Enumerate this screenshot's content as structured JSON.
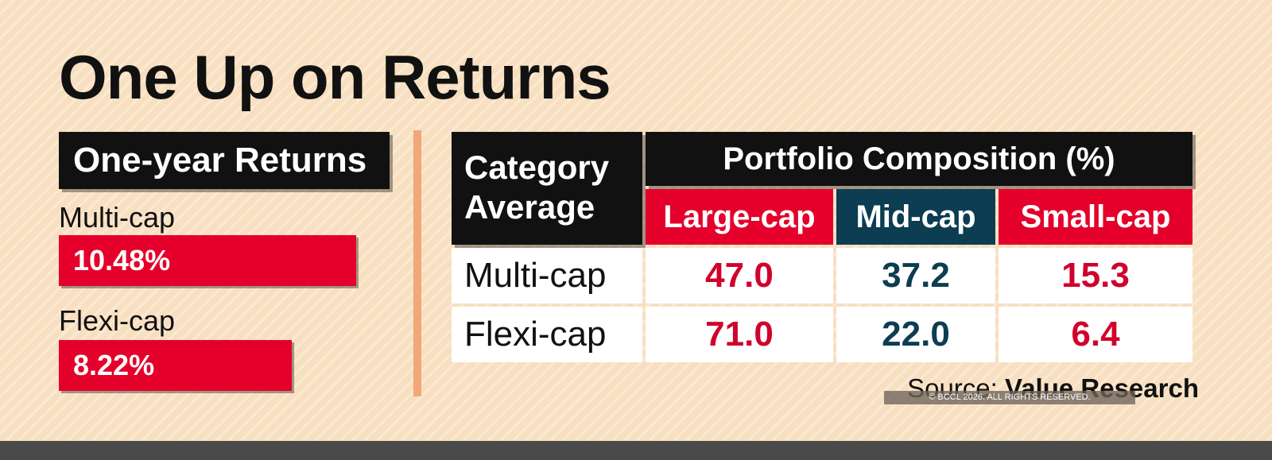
{
  "title": "One Up on Returns",
  "returns_panel": {
    "heading": "One-year Returns",
    "items": [
      {
        "label": "Multi-cap",
        "value_label": "10.48%",
        "value": 10.48
      },
      {
        "label": "Flexi-cap",
        "value_label": "8.22%",
        "value": 8.22
      }
    ]
  },
  "table": {
    "corner_label": [
      "Category",
      "Average"
    ],
    "group_header": "Portfolio Composition (%)",
    "columns": [
      "Large-cap",
      "Mid-cap",
      "Small-cap"
    ],
    "rows": [
      {
        "label": "Multi-cap",
        "cells": [
          "47.0",
          "37.2",
          "15.3"
        ]
      },
      {
        "label": "Flexi-cap",
        "cells": [
          "71.0",
          "22.0",
          "6.4"
        ]
      }
    ]
  },
  "source": {
    "prefix": "Source:",
    "name": "Value Research"
  },
  "copyright": "© BCCL 2026. ALL RIGHTS RESERVED.",
  "colors": {
    "accent_red": "#e4002b",
    "teal": "#0c3d52",
    "header_black": "#111111",
    "background": "#f8dfc0"
  },
  "chart_data": [
    {
      "type": "bar",
      "title": "One-year Returns",
      "categories": [
        "Multi-cap",
        "Flexi-cap"
      ],
      "values": [
        10.48,
        8.22
      ],
      "data_labels": [
        "10.48%",
        "8.22%"
      ]
    },
    {
      "type": "table",
      "title": "Portfolio Composition (%)",
      "row_header": "Category Average",
      "columns": [
        "Large-cap",
        "Mid-cap",
        "Small-cap"
      ],
      "rows": [
        "Multi-cap",
        "Flexi-cap"
      ],
      "values": [
        [
          47.0,
          37.2,
          15.3
        ],
        [
          71.0,
          22.0,
          6.4
        ]
      ]
    }
  ]
}
